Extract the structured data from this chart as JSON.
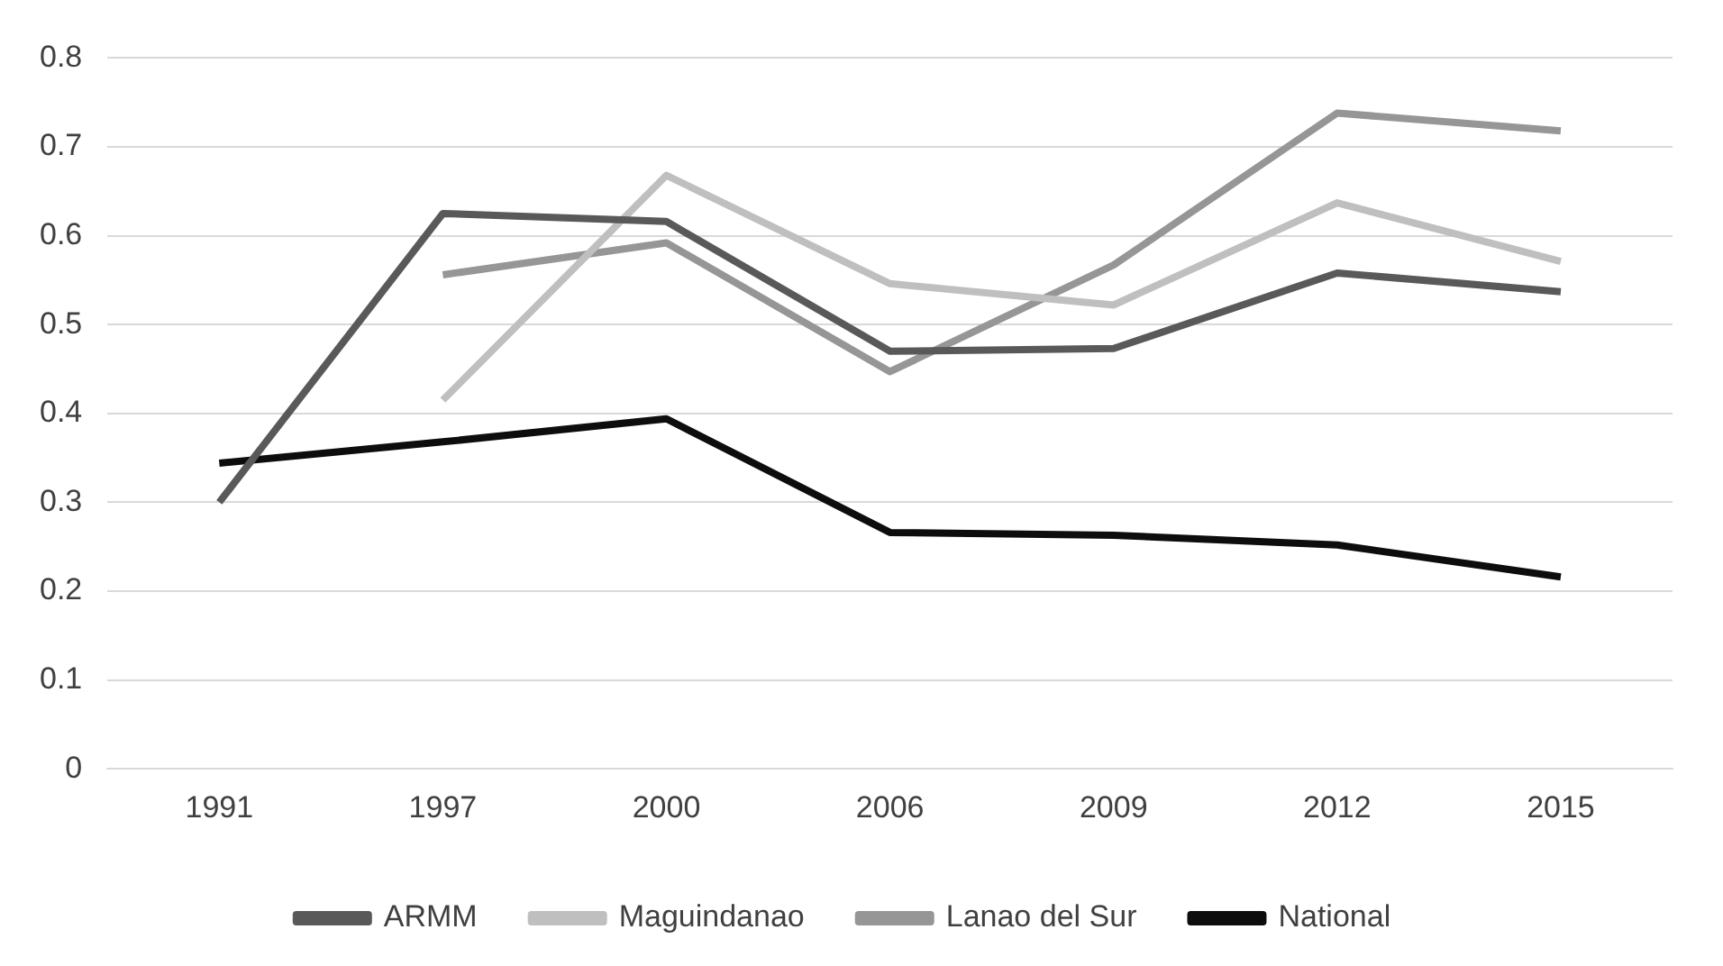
{
  "chart_data": {
    "type": "line",
    "categories": [
      "1991",
      "1997",
      "2000",
      "2006",
      "2009",
      "2012",
      "2015"
    ],
    "series": [
      {
        "name": "ARMM",
        "color": "#595959",
        "values": [
          0.3,
          0.625,
          0.616,
          0.47,
          0.473,
          0.558,
          0.537
        ]
      },
      {
        "name": "Maguindanao",
        "color": "#bfbfbf",
        "values": [
          null,
          0.415,
          0.668,
          0.546,
          0.522,
          0.637,
          0.571
        ]
      },
      {
        "name": "Lanao del Sur",
        "color": "#969696",
        "values": [
          null,
          0.556,
          0.592,
          0.447,
          0.567,
          0.738,
          0.718
        ]
      },
      {
        "name": "National",
        "color": "#0d0d0d",
        "values": [
          0.344,
          0.368,
          0.394,
          0.266,
          0.263,
          0.252,
          0.216
        ]
      }
    ],
    "ylim": [
      0,
      0.8
    ],
    "yticks": [
      0,
      0.1,
      0.2,
      0.3,
      0.4,
      0.5,
      0.6,
      0.7,
      0.8
    ],
    "grid": "y",
    "legend": "bottom",
    "marker": "none",
    "line_style": "solid"
  }
}
